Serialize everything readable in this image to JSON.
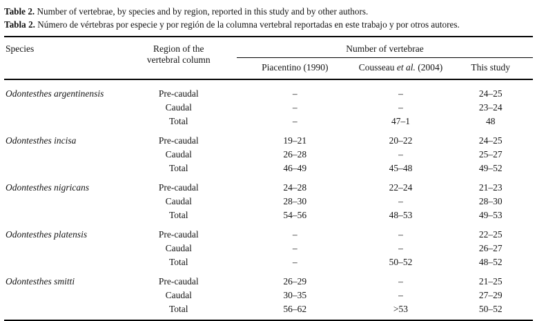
{
  "colors": {
    "background": "#ffffff",
    "text": "#131313",
    "rule": "#000000"
  },
  "caption": {
    "en_label": "Table 2.",
    "en_text": " Number of vertebrae, by species and by region, reported in this study and by other authors.",
    "es_label": "Tabla 2.",
    "es_text": " Número de vértebras por especie y por región de la columna vertebral reportadas en este trabajo y por otros autores."
  },
  "table": {
    "col_species": "Species",
    "col_region_line1": "Region of the",
    "col_region_line2": "vertebral column",
    "span_header": "Number of vertebrae",
    "sub_headers": [
      {
        "text": "Piacentino (1990)"
      },
      {
        "pre": "Cousseau ",
        "italic": "et al.",
        "post": " (2004)"
      },
      {
        "text": "This study"
      }
    ],
    "groups": [
      {
        "species": "Odontesthes argentinensis",
        "rows": [
          {
            "region": "Pre-caudal",
            "piacentino": "–",
            "cousseau": "–",
            "this_study": "24–25"
          },
          {
            "region": "Caudal",
            "piacentino": "–",
            "cousseau": "–",
            "this_study": "23–24"
          },
          {
            "region": "Total",
            "piacentino": "–",
            "cousseau": "47–1",
            "this_study": "48"
          }
        ]
      },
      {
        "species": "Odontesthes incisa",
        "rows": [
          {
            "region": "Pre-caudal",
            "piacentino": "19–21",
            "cousseau": "20–22",
            "this_study": "24–25"
          },
          {
            "region": "Caudal",
            "piacentino": "26–28",
            "cousseau": "–",
            "this_study": "25–27"
          },
          {
            "region": "Total",
            "piacentino": "46–49",
            "cousseau": "45–48",
            "this_study": "49–52"
          }
        ]
      },
      {
        "species": "Odontesthes nigricans",
        "rows": [
          {
            "region": "Pre-caudal",
            "piacentino": "24–28",
            "cousseau": "22–24",
            "this_study": "21–23"
          },
          {
            "region": "Caudal",
            "piacentino": "28–30",
            "cousseau": "–",
            "this_study": "28–30"
          },
          {
            "region": "Total",
            "piacentino": "54–56",
            "cousseau": "48–53",
            "this_study": "49–53"
          }
        ]
      },
      {
        "species": "Odontesthes platensis",
        "rows": [
          {
            "region": "Pre-caudal",
            "piacentino": "–",
            "cousseau": "–",
            "this_study": "22–25"
          },
          {
            "region": "Caudal",
            "piacentino": "–",
            "cousseau": "–",
            "this_study": "26–27"
          },
          {
            "region": "Total",
            "piacentino": "–",
            "cousseau": "50–52",
            "this_study": "48–52"
          }
        ]
      },
      {
        "species": "Odontesthes smitti",
        "rows": [
          {
            "region": "Pre-caudal",
            "piacentino": "26–29",
            "cousseau": "–",
            "this_study": "21–25"
          },
          {
            "region": "Caudal",
            "piacentino": "30–35",
            "cousseau": "–",
            "this_study": "27–29"
          },
          {
            "region": "Total",
            "piacentino": "56–62",
            "cousseau": ">53",
            "this_study": "50–52"
          }
        ]
      }
    ]
  }
}
